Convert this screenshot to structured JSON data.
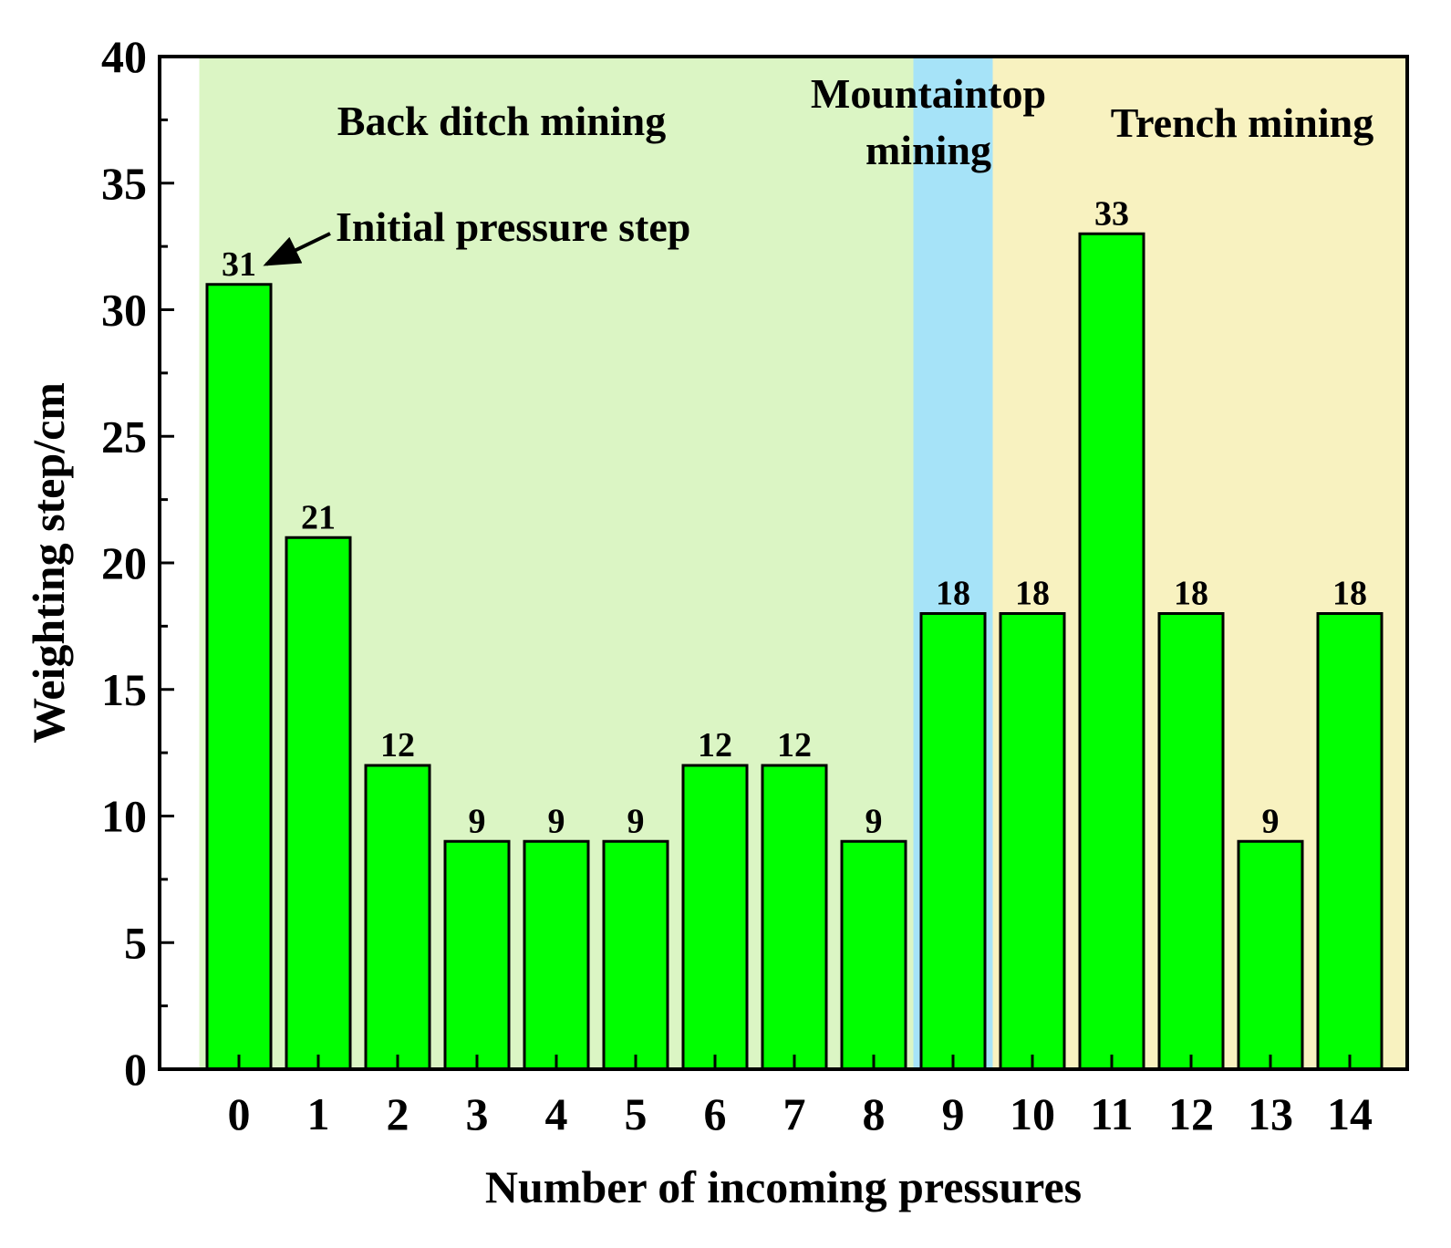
{
  "chart_data": {
    "type": "bar",
    "title": "",
    "xlabel": "Number of incoming pressures",
    "ylabel": "Weighting step/cm",
    "categories": [
      "0",
      "1",
      "2",
      "3",
      "4",
      "5",
      "6",
      "7",
      "8",
      "9",
      "10",
      "11",
      "12",
      "13",
      "14"
    ],
    "values": [
      31,
      21,
      12,
      9,
      9,
      9,
      12,
      12,
      9,
      18,
      18,
      33,
      18,
      9,
      18
    ],
    "data_labels": [
      "31",
      "21",
      "12",
      "9",
      "9",
      "9",
      "12",
      "12",
      "9",
      "18",
      "18",
      "33",
      "18",
      "9",
      "18"
    ],
    "ylim": [
      0,
      40
    ],
    "yticks": [
      0,
      5,
      10,
      15,
      20,
      25,
      30,
      35,
      40
    ],
    "ytick_labels": [
      "0",
      "5",
      "10",
      "15",
      "20",
      "25",
      "30",
      "35",
      "40"
    ],
    "grid": false,
    "bar_color": "#00ff00",
    "regions": [
      {
        "label_lines": [
          "Back ditch mining"
        ],
        "from": -0.5,
        "to": 8.5,
        "color": "#dbf5c4"
      },
      {
        "label_lines": [
          "Mountaintop",
          "mining"
        ],
        "from": 8.5,
        "to": 9.5,
        "color": "#a6e3f8"
      },
      {
        "label_lines": [
          "Trench mining"
        ],
        "from": 9.5,
        "to": 15.5,
        "color": "#f8f2c0"
      }
    ],
    "annotation": {
      "text": "Initial pressure step",
      "target_index": 0
    }
  }
}
